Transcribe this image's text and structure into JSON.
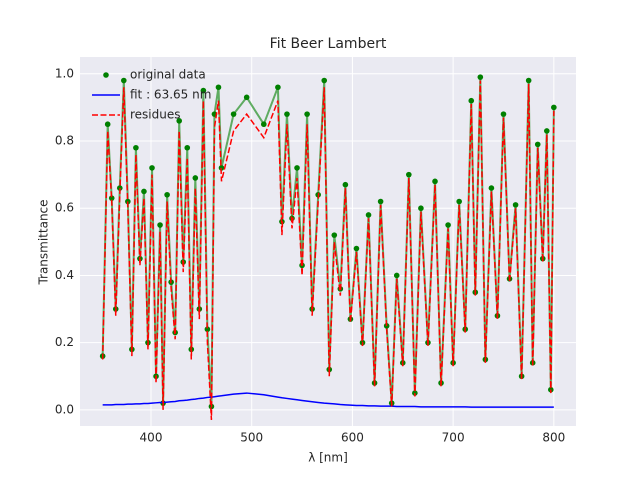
{
  "chart_data": {
    "type": "line",
    "title": "Fit Beer Lambert",
    "x_label": "λ [nm]",
    "y_label": "Transmittance",
    "xlim": [
      329.5,
      822
    ],
    "ylim": [
      -0.048,
      1.05
    ],
    "xticks": [
      400,
      500,
      600,
      700,
      800
    ],
    "yticks": [
      {
        "value": 0,
        "label": "0.0"
      },
      0.2,
      0.4,
      0.6,
      0.8,
      {
        "value": 1,
        "label": "1.0"
      }
    ],
    "grid": true,
    "legend": "upper left",
    "x": [
      352,
      357,
      361,
      365,
      369,
      373,
      377,
      381,
      385,
      389,
      393,
      397,
      401,
      405,
      409,
      412,
      416,
      420,
      424,
      428,
      432,
      436,
      440,
      444,
      448,
      452,
      456,
      460,
      463,
      467,
      470,
      482,
      495,
      512,
      526,
      530,
      535,
      540,
      545,
      550,
      555,
      560,
      566,
      572,
      577,
      582,
      588,
      593,
      598,
      604,
      610,
      616,
      622,
      628,
      634,
      639,
      644,
      650,
      656,
      662,
      668,
      675,
      682,
      688,
      695,
      700,
      706,
      712,
      718,
      722,
      727,
      732,
      738,
      744,
      750,
      756,
      762,
      768,
      775,
      779,
      784,
      789,
      793,
      797,
      800
    ],
    "series": [
      {
        "name": "original data",
        "color": "#008000",
        "marker": "o",
        "linestyle": "solid",
        "values": [
          0.16,
          0.85,
          0.63,
          0.3,
          0.66,
          0.98,
          0.62,
          0.18,
          0.78,
          0.45,
          0.65,
          0.2,
          0.72,
          0.1,
          0.55,
          0.02,
          0.64,
          0.38,
          0.23,
          0.86,
          0.44,
          0.78,
          0.18,
          0.69,
          0.3,
          0.95,
          0.24,
          0.01,
          0.88,
          0.96,
          0.72,
          0.88,
          0.93,
          0.85,
          0.96,
          0.56,
          0.88,
          0.57,
          0.72,
          0.43,
          0.88,
          0.3,
          0.64,
          0.98,
          0.12,
          0.52,
          0.36,
          0.67,
          0.27,
          0.48,
          0.2,
          0.58,
          0.08,
          0.62,
          0.25,
          0.02,
          0.4,
          0.14,
          0.7,
          0.05,
          0.6,
          0.2,
          0.68,
          0.08,
          0.55,
          0.14,
          0.62,
          0.24,
          0.92,
          0.35,
          0.99,
          0.15,
          0.66,
          0.28,
          0.88,
          0.39,
          0.61,
          0.1,
          0.98,
          0.14,
          0.79,
          0.45,
          0.83,
          0.06,
          0.9
        ]
      },
      {
        "name": "fit : 63.65 nm",
        "color": "#0000ff",
        "marker": "none",
        "linestyle": "solid",
        "values": [
          0.015,
          0.015,
          0.015,
          0.016,
          0.016,
          0.016,
          0.017,
          0.017,
          0.018,
          0.018,
          0.019,
          0.019,
          0.02,
          0.021,
          0.022,
          0.022,
          0.023,
          0.024,
          0.025,
          0.027,
          0.028,
          0.029,
          0.031,
          0.032,
          0.034,
          0.035,
          0.037,
          0.038,
          0.039,
          0.041,
          0.042,
          0.047,
          0.05,
          0.045,
          0.038,
          0.036,
          0.034,
          0.032,
          0.03,
          0.028,
          0.026,
          0.024,
          0.022,
          0.02,
          0.019,
          0.018,
          0.016,
          0.015,
          0.014,
          0.013,
          0.013,
          0.012,
          0.012,
          0.011,
          0.011,
          0.011,
          0.01,
          0.01,
          0.01,
          0.01,
          0.009,
          0.009,
          0.009,
          0.009,
          0.009,
          0.009,
          0.009,
          0.009,
          0.008,
          0.008,
          0.008,
          0.008,
          0.008,
          0.008,
          0.008,
          0.008,
          0.008,
          0.008,
          0.008,
          0.008,
          0.008,
          0.008,
          0.008,
          0.008,
          0.008
        ]
      },
      {
        "name": "residues",
        "color": "#ff0000",
        "marker": "none",
        "linestyle": "dashed",
        "values": [
          0.15,
          0.83,
          0.62,
          0.28,
          0.64,
          0.96,
          0.6,
          0.16,
          0.76,
          0.43,
          0.63,
          0.18,
          0.7,
          0.08,
          0.53,
          0.0,
          0.62,
          0.36,
          0.21,
          0.83,
          0.41,
          0.75,
          0.15,
          0.66,
          0.27,
          0.92,
          0.2,
          -0.03,
          0.84,
          0.92,
          0.68,
          0.83,
          0.88,
          0.81,
          0.92,
          0.52,
          0.85,
          0.54,
          0.69,
          0.4,
          0.85,
          0.28,
          0.62,
          0.96,
          0.1,
          0.5,
          0.34,
          0.66,
          0.26,
          0.47,
          0.19,
          0.57,
          0.07,
          0.61,
          0.24,
          0.01,
          0.39,
          0.13,
          0.69,
          0.04,
          0.59,
          0.19,
          0.67,
          0.07,
          0.54,
          0.13,
          0.61,
          0.23,
          0.91,
          0.34,
          0.98,
          0.14,
          0.65,
          0.27,
          0.87,
          0.38,
          0.6,
          0.09,
          0.97,
          0.13,
          0.78,
          0.44,
          0.82,
          0.05,
          0.89
        ]
      }
    ]
  }
}
